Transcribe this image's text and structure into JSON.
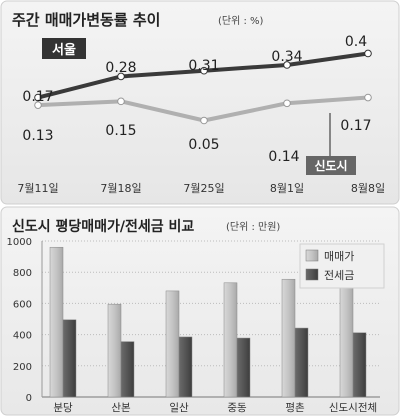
{
  "chart_data": [
    {
      "type": "line",
      "title": "주간 매매가변동률 추이",
      "unit": "(단위 : %)",
      "categories": [
        "7월11일",
        "7월18일",
        "7월25일",
        "8월1일",
        "8월8일"
      ],
      "series": [
        {
          "name": "서울",
          "values": [
            0.17,
            0.28,
            0.31,
            0.34,
            0.4
          ],
          "color": "#333333"
        },
        {
          "name": "신도시",
          "values": [
            0.13,
            0.15,
            0.05,
            0.14,
            0.17
          ],
          "color": "#aaaaaa"
        }
      ],
      "labels": [
        [
          "0.17",
          "0.28",
          "0.31",
          "0.34",
          "0.4"
        ],
        [
          "0.13",
          "0.15",
          "0.05",
          "0.14",
          "0.17"
        ]
      ]
    },
    {
      "type": "bar",
      "title": "신도시 평당매매가/전세금 비교",
      "unit": "(단위 : 만원)",
      "categories": [
        "분당",
        "산본",
        "일산",
        "중동",
        "평촌",
        "신도시전체"
      ],
      "ylim": [
        0,
        1000
      ],
      "yticks": [
        "0",
        "200",
        "400",
        "600",
        "800",
        "1000"
      ],
      "series": [
        {
          "name": "매매가",
          "values": [
            960,
            595,
            680,
            732,
            755,
            780
          ],
          "color": "#c8c8c8"
        },
        {
          "name": "전세금",
          "values": [
            495,
            355,
            385,
            378,
            442,
            412
          ],
          "color": "#555555"
        }
      ],
      "legend_position": "top-right"
    }
  ]
}
